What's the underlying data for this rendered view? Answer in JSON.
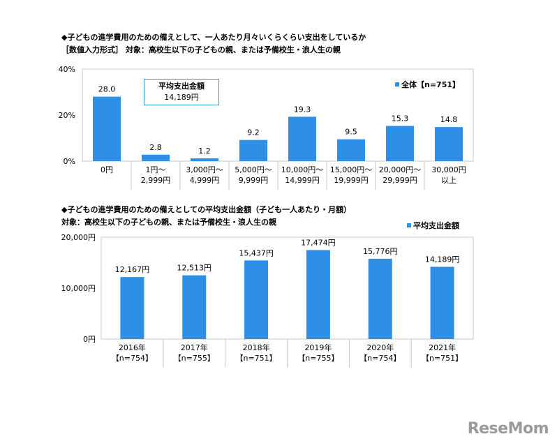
{
  "chart1": {
    "title": "◆子どもの進学費用のための備えとして、一人あたり月々いくらくらい支出をしているか",
    "subtitle": "［数値入力形式］ 対象：高校生以下の子どもの親、または予備校生・浪人生の親",
    "avg_box": {
      "label": "平均支出金額",
      "value": "14,189円"
    }
  },
  "chart2": {
    "title": "◆子どもの進学費用のための備えとしての平均支出金額（子ども一人あたり・月額）",
    "subtitle": "対象：高校生以下の子どもの親、または予備校生・浪人生の親"
  },
  "logo": "ReseMom",
  "colors": {
    "bar": "#2e8fe6",
    "grid": "#c8c8c8",
    "box_border": "#3a9bd5"
  },
  "chart_data": [
    {
      "type": "bar",
      "title": "◆子どもの進学費用のための備えとして、一人あたり月々いくらくらい支出をしているか",
      "categories": [
        "0円",
        "1円～\n2,999円",
        "3,000円～\n4,999円",
        "5,000円～\n9,999円",
        "10,000円～\n14,999円",
        "15,000円～\n19,999円",
        "20,000円～\n29,999円",
        "30,000円\n以上"
      ],
      "series": [
        {
          "name": "全体【n=751】",
          "values": [
            28.0,
            2.8,
            1.2,
            9.2,
            19.3,
            9.5,
            15.3,
            14.8
          ]
        }
      ],
      "value_labels": [
        "28.0",
        "2.8",
        "1.2",
        "9.2",
        "19.3",
        "9.5",
        "15.3",
        "14.8"
      ],
      "yticks": [
        "0%",
        "20%",
        "40%"
      ],
      "ylim": [
        0,
        40
      ],
      "legend": "top-right",
      "grid": false
    },
    {
      "type": "bar",
      "title": "◆子どもの進学費用のための備えとしての平均支出金額（子ども一人あたり・月額）",
      "categories": [
        "2016年\n【n=754】",
        "2017年\n【n=755】",
        "2018年\n【n=751】",
        "2019年\n【n=755】",
        "2020年\n【n=754】",
        "2021年\n【n=751】"
      ],
      "series": [
        {
          "name": "平均支出金額",
          "values": [
            12167,
            12513,
            15437,
            17474,
            15776,
            14189
          ]
        }
      ],
      "value_labels": [
        "12,167円",
        "12,513円",
        "15,437円",
        "17,474円",
        "15,776円",
        "14,189円"
      ],
      "yticks": [
        "0円",
        "10,000円",
        "20,000円"
      ],
      "ylim": [
        0,
        20000
      ],
      "legend": "top-right",
      "grid": false
    }
  ]
}
